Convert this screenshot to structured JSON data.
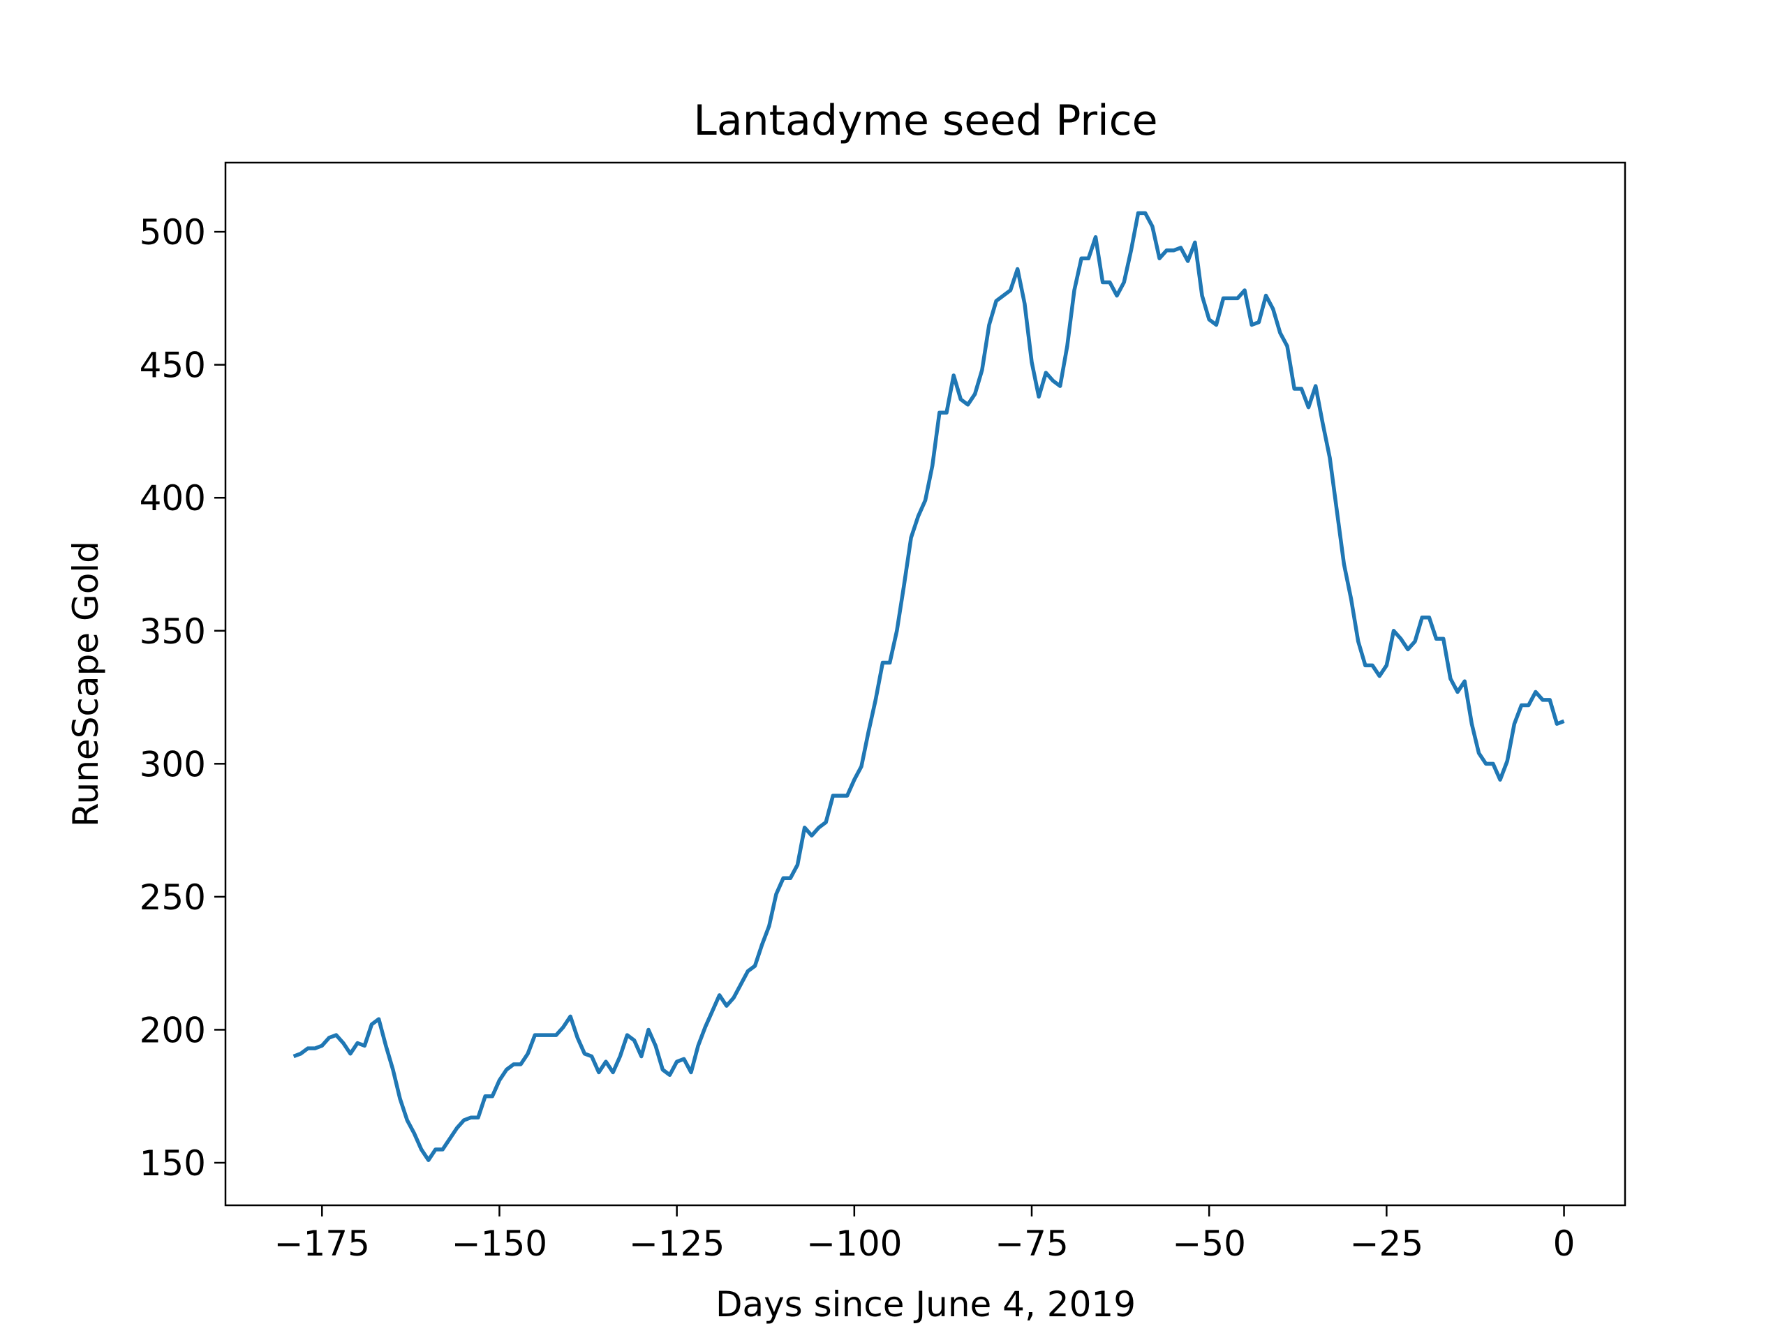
{
  "chart_data": {
    "type": "line",
    "title": "Lantadyme seed Price",
    "xlabel": "Days since June 4, 2019",
    "ylabel": "RuneScape Gold",
    "xlim": [
      -188.6,
      8.6
    ],
    "ylim": [
      134,
      526
    ],
    "xticks": [
      -175,
      -150,
      -125,
      -100,
      -75,
      -50,
      -25,
      0
    ],
    "xtick_labels": [
      "−175",
      "−150",
      "−125",
      "−100",
      "−75",
      "−50",
      "−25",
      "0"
    ],
    "yticks": [
      150,
      200,
      250,
      300,
      350,
      400,
      450,
      500
    ],
    "ytick_labels": [
      "150",
      "200",
      "250",
      "300",
      "350",
      "400",
      "450",
      "500"
    ],
    "grid": false,
    "legend": false,
    "series": [
      {
        "color": "#1f77b4",
        "x": [
          -179,
          -178,
          -177,
          -176,
          -175,
          -174,
          -173,
          -172,
          -171,
          -170,
          -169,
          -168,
          -167,
          -166,
          -165,
          -164,
          -163,
          -162,
          -161,
          -160,
          -159,
          -158,
          -157,
          -156,
          -155,
          -154,
          -153,
          -152,
          -151,
          -150,
          -149,
          -148,
          -147,
          -146,
          -145,
          -144,
          -143,
          -142,
          -141,
          -140,
          -139,
          -138,
          -137,
          -136,
          -135,
          -134,
          -133,
          -132,
          -131,
          -130,
          -129,
          -128,
          -127,
          -126,
          -125,
          -124,
          -123,
          -122,
          -121,
          -120,
          -119,
          -118,
          -117,
          -116,
          -115,
          -114,
          -113,
          -112,
          -111,
          -110,
          -109,
          -108,
          -107,
          -106,
          -105,
          -104,
          -103,
          -102,
          -101,
          -100,
          -99,
          -98,
          -97,
          -96,
          -95,
          -94,
          -93,
          -92,
          -91,
          -90,
          -89,
          -88,
          -87,
          -86,
          -85,
          -84,
          -83,
          -82,
          -81,
          -80,
          -79,
          -78,
          -77,
          -76,
          -75,
          -74,
          -73,
          -72,
          -71,
          -70,
          -69,
          -68,
          -67,
          -66,
          -65,
          -64,
          -63,
          -62,
          -61,
          -60,
          -59,
          -58,
          -57,
          -56,
          -55,
          -54,
          -53,
          -52,
          -51,
          -50,
          -49,
          -48,
          -47,
          -46,
          -45,
          -44,
          -43,
          -42,
          -41,
          -40,
          -39,
          -38,
          -37,
          -36,
          -35,
          -34,
          -33,
          -32,
          -31,
          -30,
          -29,
          -28,
          -27,
          -26,
          -25,
          -24,
          -23,
          -22,
          -21,
          -20,
          -19,
          -18,
          -17,
          -16,
          -15,
          -14,
          -13,
          -12,
          -11,
          -10,
          -9,
          -8,
          -7,
          -6,
          -5,
          -4,
          -3,
          -2,
          -1,
          0
        ],
        "y": [
          190,
          191,
          193,
          193,
          194,
          197,
          198,
          195,
          191,
          195,
          194,
          202,
          204,
          194,
          185,
          174,
          166,
          161,
          155,
          151,
          155,
          155,
          159,
          163,
          166,
          167,
          167,
          175,
          175,
          181,
          185,
          187,
          187,
          191,
          198,
          198,
          198,
          198,
          201,
          205,
          197,
          191,
          190,
          184,
          188,
          184,
          190,
          198,
          196,
          190,
          200,
          194,
          185,
          183,
          188,
          189,
          184,
          194,
          201,
          207,
          213,
          209,
          212,
          217,
          222,
          224,
          232,
          239,
          251,
          257,
          257,
          262,
          276,
          273,
          276,
          278,
          288,
          288,
          288,
          294,
          299,
          312,
          324,
          338,
          338,
          350,
          367,
          385,
          393,
          399,
          412,
          432,
          432,
          446,
          437,
          435,
          439,
          448,
          465,
          474,
          476,
          478,
          486,
          473,
          451,
          438,
          447,
          444,
          442,
          457,
          478,
          490,
          490,
          498,
          481,
          481,
          476,
          481,
          493,
          507,
          507,
          502,
          490,
          493,
          493,
          494,
          489,
          496,
          476,
          467,
          465,
          475,
          475,
          475,
          478,
          465,
          466,
          476,
          471,
          462,
          457,
          441,
          441,
          434,
          442,
          428,
          415,
          395,
          375,
          362,
          346,
          337,
          337,
          333,
          337,
          350,
          347,
          343,
          346,
          355,
          355,
          347,
          347,
          332,
          327,
          331,
          315,
          304,
          300,
          300,
          294,
          301,
          315,
          322,
          322,
          327,
          324,
          324,
          315,
          316
        ]
      }
    ]
  }
}
